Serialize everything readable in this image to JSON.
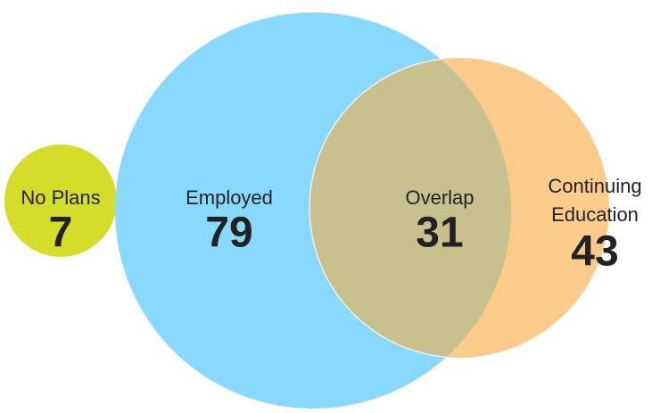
{
  "sets": [
    {
      "label_lines": [
        "No Plans"
      ],
      "value": "7"
    },
    {
      "label_lines": [
        "Employed"
      ],
      "value": "79"
    },
    {
      "label_lines": [
        "Overlap"
      ],
      "value": "31"
    },
    {
      "label_lines": [
        "Continuing",
        "Education"
      ],
      "value": "43"
    }
  ]
}
